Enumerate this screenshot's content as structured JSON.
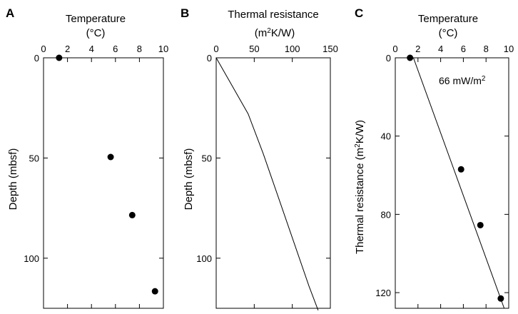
{
  "chart_data": [
    {
      "panel": "A",
      "type": "scatter",
      "xlabel": "Temperature",
      "xlabel_unit": "(°C)",
      "ylabel": "Depth (mbsf)",
      "xlim": [
        0,
        10
      ],
      "ylim": [
        0,
        125
      ],
      "y_inverted": true,
      "x_axis_position": "top",
      "x_ticks": [
        0,
        2,
        4,
        6,
        8,
        10
      ],
      "y_ticks": [
        0,
        50,
        100
      ],
      "points": [
        {
          "x": 1.3,
          "y": 0
        },
        {
          "x": 5.6,
          "y": 49.5
        },
        {
          "x": 7.4,
          "y": 78.5
        },
        {
          "x": 9.3,
          "y": 116.5
        }
      ]
    },
    {
      "panel": "B",
      "type": "line",
      "xlabel": "Thermal resistance",
      "xlabel_unit_base": "(m",
      "xlabel_unit_sup": "2",
      "xlabel_unit_rest": "K/W)",
      "ylabel": "Depth (mbsf)",
      "xlim": [
        0,
        150
      ],
      "ylim": [
        0,
        125
      ],
      "y_inverted": true,
      "x_axis_position": "top",
      "x_ticks": [
        0,
        50,
        100,
        150
      ],
      "y_ticks": [
        0,
        50,
        100
      ],
      "line": [
        {
          "x": 0,
          "y": 0
        },
        {
          "x": 42,
          "y": 28
        },
        {
          "x": 62,
          "y": 48
        },
        {
          "x": 82,
          "y": 70
        },
        {
          "x": 102,
          "y": 92
        },
        {
          "x": 122,
          "y": 114
        },
        {
          "x": 134,
          "y": 126
        }
      ]
    },
    {
      "panel": "C",
      "type": "scatter",
      "xlabel": "Temperature",
      "xlabel_unit": "(°C)",
      "ylabel_base": "Thermal resistance (m",
      "ylabel_sup": "2",
      "ylabel_rest": "K/W)",
      "xlim": [
        0,
        10
      ],
      "ylim": [
        0,
        128
      ],
      "y_inverted": true,
      "x_axis_position": "top",
      "x_ticks": [
        0,
        2,
        4,
        6,
        8,
        10
      ],
      "y_ticks": [
        0,
        40,
        80,
        120
      ],
      "points": [
        {
          "x": 1.3,
          "y": 0
        },
        {
          "x": 5.8,
          "y": 57
        },
        {
          "x": 7.5,
          "y": 85.5
        },
        {
          "x": 9.3,
          "y": 123
        }
      ],
      "fit_line": [
        {
          "x": 1.6,
          "y": 0
        },
        {
          "x": 9.6,
          "y": 128
        }
      ],
      "annotation_base": "66 mW/m",
      "annotation_sup": "2"
    }
  ]
}
